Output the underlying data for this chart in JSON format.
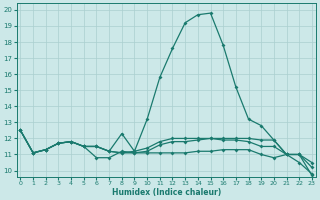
{
  "xlabel": "Humidex (Indice chaleur)",
  "bg_color": "#cce8e8",
  "line_color": "#1a7a6e",
  "grid_color": "#aacfcf",
  "x_ticks": [
    0,
    1,
    2,
    3,
    4,
    5,
    6,
    7,
    8,
    9,
    10,
    11,
    12,
    13,
    14,
    15,
    16,
    17,
    18,
    19,
    20,
    21,
    22,
    23
  ],
  "y_ticks": [
    10,
    11,
    12,
    13,
    14,
    15,
    16,
    17,
    18,
    19,
    20
  ],
  "xlim": [
    -0.3,
    23.3
  ],
  "ylim": [
    9.6,
    20.4
  ],
  "series": [
    [
      12.5,
      11.1,
      11.3,
      11.7,
      11.8,
      11.5,
      10.8,
      10.8,
      11.2,
      11.1,
      11.1,
      11.1,
      11.1,
      11.1,
      11.2,
      11.2,
      11.3,
      11.3,
      11.3,
      11.0,
      10.8,
      11.0,
      10.5,
      9.8
    ],
    [
      12.5,
      11.1,
      11.3,
      11.7,
      11.8,
      11.5,
      11.5,
      11.2,
      11.1,
      11.1,
      11.2,
      11.6,
      11.8,
      11.8,
      11.9,
      12.0,
      11.9,
      11.9,
      11.8,
      11.5,
      11.5,
      11.0,
      11.0,
      10.2
    ],
    [
      12.5,
      11.1,
      11.3,
      11.7,
      11.8,
      11.5,
      11.5,
      11.2,
      12.3,
      11.2,
      11.4,
      11.8,
      12.0,
      12.0,
      12.0,
      12.0,
      12.0,
      12.0,
      12.0,
      11.9,
      11.9,
      11.0,
      11.0,
      10.5
    ],
    [
      12.5,
      11.1,
      11.3,
      11.7,
      11.8,
      11.5,
      11.5,
      11.2,
      11.1,
      11.2,
      13.2,
      15.8,
      17.6,
      19.2,
      19.7,
      19.8,
      17.8,
      15.2,
      13.2,
      12.8,
      11.9,
      11.0,
      11.0,
      9.7
    ]
  ]
}
